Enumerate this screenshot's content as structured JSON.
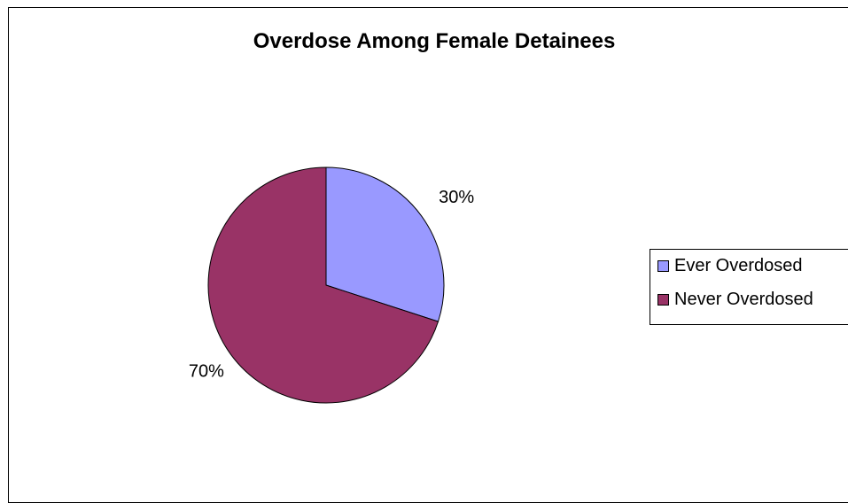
{
  "chart_data": {
    "type": "pie",
    "title": "Overdose Among Female Detainees",
    "categories": [
      "Ever Overdosed",
      "Never Overdosed"
    ],
    "values": [
      30,
      70
    ],
    "data_labels": [
      "30%",
      "70%"
    ],
    "colors": [
      "#9999ff",
      "#993366"
    ],
    "legend": {
      "position": "right",
      "entries": [
        "Ever Overdosed",
        "Never Overdosed"
      ]
    }
  }
}
